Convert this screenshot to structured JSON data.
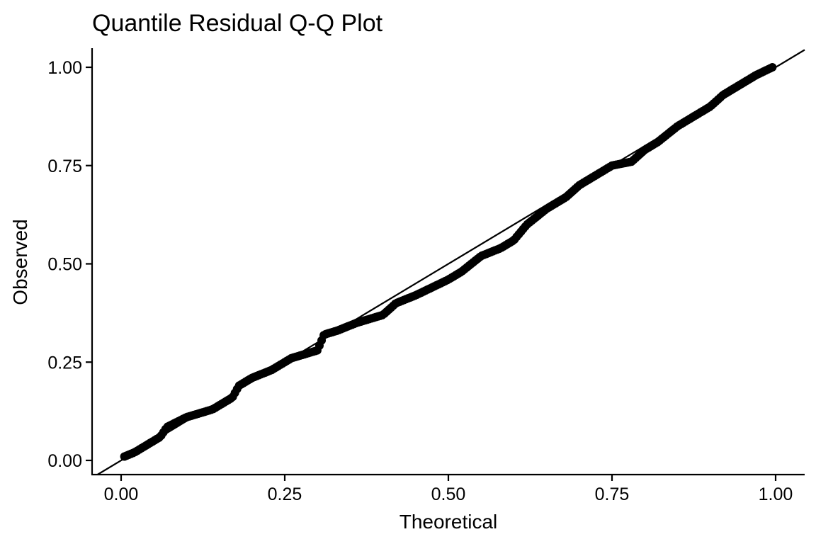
{
  "chart_data": {
    "type": "scatter",
    "title": "Quantile Residual Q-Q Plot",
    "xlabel": "Theoretical",
    "ylabel": "Observed",
    "xlim": [
      -0.04,
      1.04
    ],
    "ylim": [
      -0.035,
      1.05
    ],
    "xticks": [
      0.0,
      0.25,
      0.5,
      0.75,
      1.0
    ],
    "xtick_labels": [
      "0.00",
      "0.25",
      "0.50",
      "0.75",
      "1.00"
    ],
    "yticks": [
      0.0,
      0.25,
      0.5,
      0.75,
      1.0
    ],
    "ytick_labels": [
      "0.00",
      "0.25",
      "0.50",
      "0.75",
      "1.00"
    ],
    "grid": false,
    "reference_line": {
      "slope": 1,
      "intercept": 0
    },
    "curve_keypoints": {
      "x": [
        0.005,
        0.02,
        0.04,
        0.06,
        0.07,
        0.1,
        0.14,
        0.17,
        0.18,
        0.2,
        0.23,
        0.26,
        0.3,
        0.31,
        0.33,
        0.36,
        0.38,
        0.4,
        0.42,
        0.45,
        0.5,
        0.52,
        0.55,
        0.58,
        0.6,
        0.62,
        0.65,
        0.68,
        0.7,
        0.72,
        0.75,
        0.78,
        0.8,
        0.82,
        0.85,
        0.88,
        0.9,
        0.92,
        0.95,
        0.97,
        0.995
      ],
      "y": [
        0.01,
        0.02,
        0.04,
        0.06,
        0.085,
        0.11,
        0.13,
        0.16,
        0.19,
        0.21,
        0.23,
        0.26,
        0.28,
        0.32,
        0.33,
        0.35,
        0.36,
        0.37,
        0.4,
        0.42,
        0.46,
        0.48,
        0.52,
        0.54,
        0.56,
        0.6,
        0.64,
        0.67,
        0.7,
        0.72,
        0.75,
        0.76,
        0.79,
        0.81,
        0.85,
        0.88,
        0.9,
        0.93,
        0.96,
        0.98,
        1.0
      ]
    },
    "n_points": 300
  }
}
